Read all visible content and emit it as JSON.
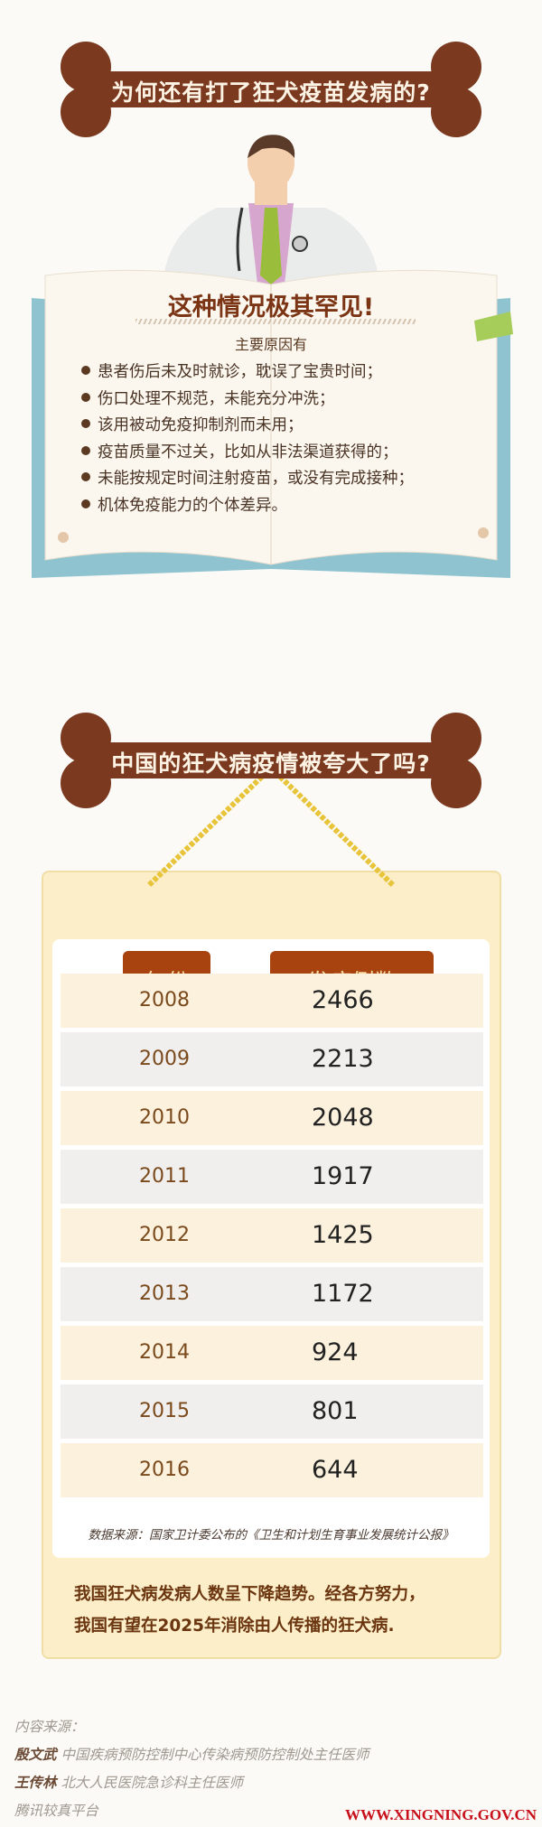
{
  "section1": {
    "title": "为何还有打了狂犬疫苗发病的?",
    "heading": "这种情况极其罕见!",
    "subheading": "主要原因有",
    "reasons": [
      "患者伤后未及时就诊，耽误了宝贵时间；",
      "伤口处理不规范，未能充分冲洗；",
      "该用被动免疫抑制剂而未用；",
      "疫苗质量不过关，比如从非法渠道获得的；",
      "未能按规定时间注射疫苗，或没有完成接种；",
      "机体免疫能力的个体差异。"
    ]
  },
  "section2": {
    "title": "中国的狂犬病疫情被夸大了吗?",
    "headers": {
      "year": "年份",
      "cases": "发病例数"
    },
    "rows": [
      {
        "year": "2008",
        "cases": "2466"
      },
      {
        "year": "2009",
        "cases": "2213"
      },
      {
        "year": "2010",
        "cases": "2048"
      },
      {
        "year": "2011",
        "cases": "1917"
      },
      {
        "year": "2012",
        "cases": "1425"
      },
      {
        "year": "2013",
        "cases": "1172"
      },
      {
        "year": "2014",
        "cases": "924"
      },
      {
        "year": "2015",
        "cases": "801"
      },
      {
        "year": "2016",
        "cases": "644"
      }
    ],
    "source": "数据来源：国家卫计委公布的《卫生和计划生育事业发展统计公报》",
    "conclusion": [
      "我国狂犬病发病人数呈下降趋势。经各方努力，",
      "我国有望在2025年消除由人传播的狂犬病."
    ]
  },
  "credits": {
    "label": "内容来源：",
    "people": [
      {
        "name": "殷文武",
        "title": "中国疾病预防控制中心传染病预防控制处主任医师"
      },
      {
        "name": "王传林",
        "title": "北大人民医院急诊科主任医师"
      }
    ],
    "platform": "腾讯较真平台"
  },
  "watermark": "WWW.XINGNING.GOV.CN",
  "colors": {
    "bone": "#7b3a1f",
    "header": "#a8420f",
    "frame": "#fbeec8",
    "book_cover": "#8fc3cf"
  }
}
